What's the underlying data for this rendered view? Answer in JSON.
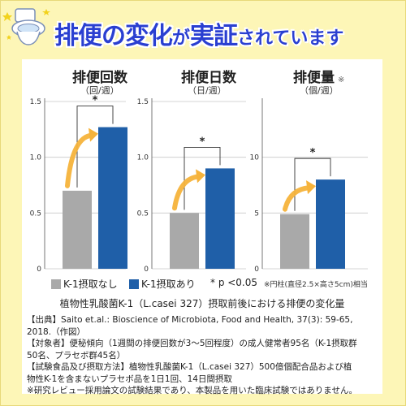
{
  "header": {
    "headline_big1": "排便の変化",
    "headline_small1": "が",
    "headline_big2": "実証",
    "headline_small2": "されています"
  },
  "chart_data": [
    {
      "type": "bar",
      "title": "排便回数",
      "unit": "（回/週）",
      "note": "",
      "categories": [
        "K-1摂取なし",
        "K-1摂取あり"
      ],
      "values": [
        0.7,
        1.27
      ],
      "ylim": [
        0,
        1.5
      ],
      "yticks": [
        0,
        0.5,
        1.0,
        1.5
      ],
      "ytick_labels": [
        "0",
        "0.5",
        "1.0",
        "1.5"
      ],
      "significance": "*",
      "grid": true
    },
    {
      "type": "bar",
      "title": "排便日数",
      "unit": "（日/週）",
      "note": "",
      "categories": [
        "K-1摂取なし",
        "K-1摂取あり"
      ],
      "values": [
        0.5,
        0.9
      ],
      "ylim": [
        0,
        1.5
      ],
      "yticks": [
        0,
        0.5,
        1.0,
        1.5
      ],
      "ytick_labels": [
        "0",
        "0.5",
        "1.0",
        "1.5"
      ],
      "significance": "*",
      "grid": true
    },
    {
      "type": "bar",
      "title": "排便量",
      "unit": "（個/週）",
      "note": "※",
      "categories": [
        "K-1摂取なし",
        "K-1摂取あり"
      ],
      "values": [
        4.9,
        8.0
      ],
      "ylim": [
        0,
        15
      ],
      "yticks": [
        0,
        5,
        10
      ],
      "ytick_labels": [
        "0",
        "5",
        "10"
      ],
      "significance": "*",
      "grid": true
    }
  ],
  "legend": {
    "series": [
      {
        "name": "K-1摂取なし",
        "color": "#a9a9a9"
      },
      {
        "name": "K-1摂取あり",
        "color": "#1f5fa8"
      }
    ],
    "significance": "* p <0.05",
    "footnote": "※円柱(直径2.5×高さ5cm)相当"
  },
  "caption": "植物性乳酸菌K-1（L.casei 327）摂取前後における排便の変化量",
  "info_lines": [
    "【出典】Saito et.al.: Bioscience of Microbiota, Food and Health, 37(3): 59-65,",
    "2018.（作図）",
    "【対象者】便秘傾向（1週間の排便回数が3～5回程度）の成人健常者95名（K-1摂取群",
    "50名、プラセボ群45名）",
    "【試験食品及び摂取方法】植物性乳酸菌K-1（L.casei 327）500億個配合品および植",
    "物性K-1を含まないプラセボ品を1日1回、14日間摂取",
    "※研究レビュー採用論文の試験結果であり、本製品を用いた臨床試験ではありません。"
  ],
  "colors": {
    "background": "#fdf6b7",
    "headline": "#2a3fd1",
    "bar_control": "#a9a9a9",
    "bar_k1": "#1f5fa8",
    "arrow": "#f6b33b",
    "emphasis_dot": "#e0322d"
  }
}
